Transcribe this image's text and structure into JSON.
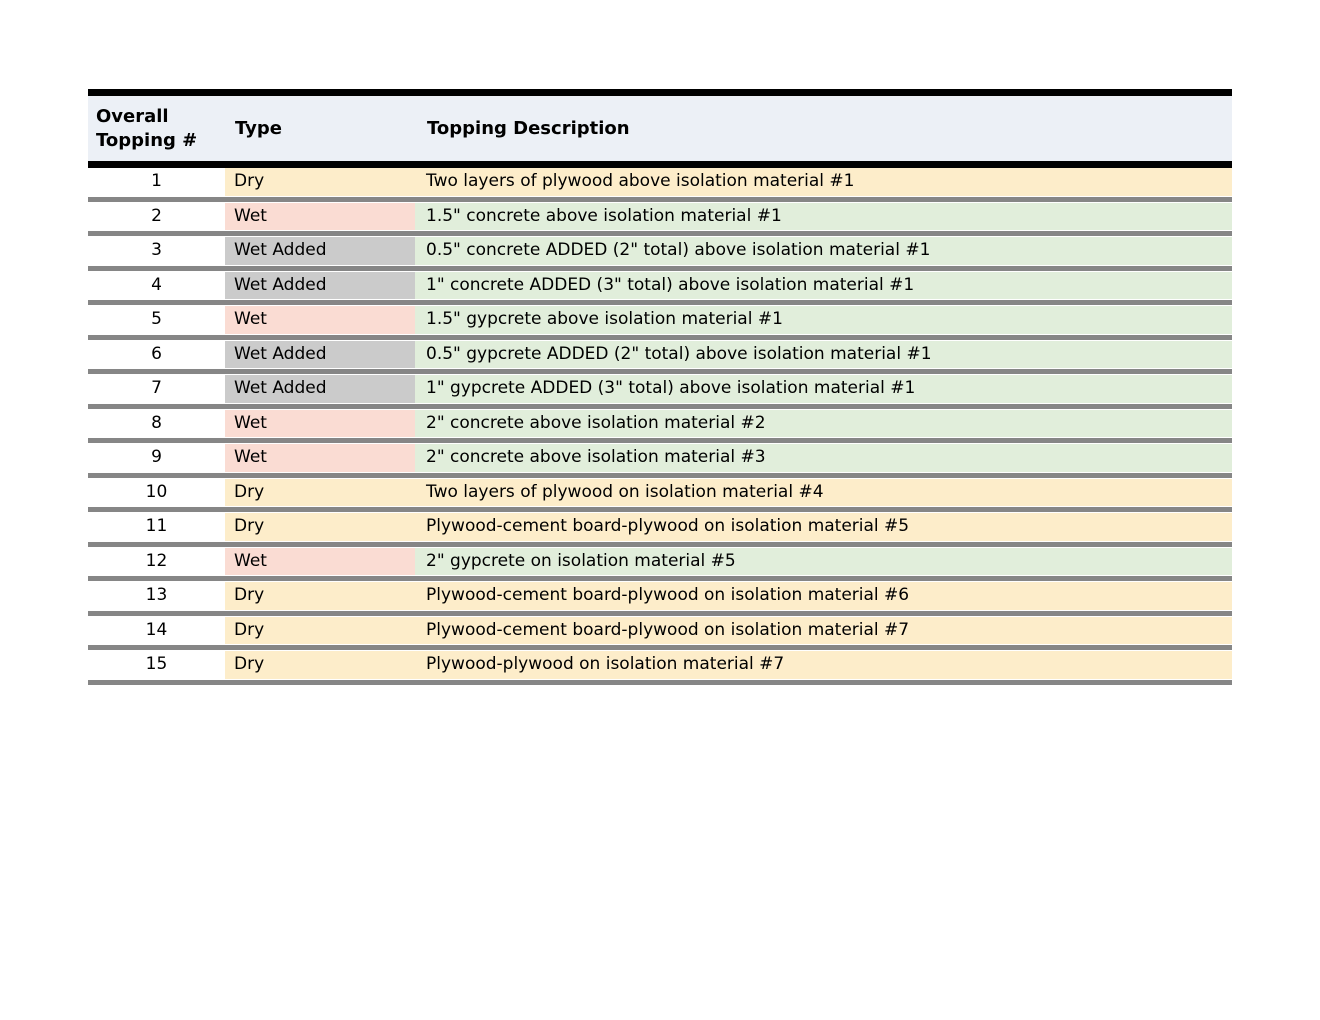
{
  "table": {
    "headers": {
      "topping_number_line1": "Overall",
      "topping_number_line2": "Topping #",
      "type": "Type",
      "description": "Topping Description"
    },
    "palette": {
      "header_bg": "#ecf0f6",
      "header_border": "#000000",
      "separator": "#868686",
      "dry": "#fdedca",
      "wet": "#fadcd3",
      "wet_added": "#cbcbcb",
      "desc_yellow": "#fdedca",
      "desc_green": "#e1eedb"
    },
    "rows": [
      {
        "num": "1",
        "type": "Dry",
        "type_color": "dry",
        "desc": "Two layers of plywood above isolation material #1",
        "desc_color": "desc_yellow"
      },
      {
        "num": "2",
        "type": "Wet",
        "type_color": "wet",
        "desc": "1.5\" concrete above isolation material #1",
        "desc_color": "desc_green"
      },
      {
        "num": "3",
        "type": "Wet Added",
        "type_color": "wet_added",
        "desc": "0.5\" concrete ADDED (2\" total) above isolation material #1",
        "desc_color": "desc_green"
      },
      {
        "num": "4",
        "type": "Wet Added",
        "type_color": "wet_added",
        "desc": "1\" concrete ADDED (3\" total) above isolation material #1",
        "desc_color": "desc_green"
      },
      {
        "num": "5",
        "type": "Wet",
        "type_color": "wet",
        "desc": "1.5\" gypcrete above isolation material #1",
        "desc_color": "desc_green"
      },
      {
        "num": "6",
        "type": "Wet Added",
        "type_color": "wet_added",
        "desc": "0.5\" gypcrete ADDED (2\" total) above isolation material #1",
        "desc_color": "desc_green"
      },
      {
        "num": "7",
        "type": "Wet Added",
        "type_color": "wet_added",
        "desc": "1\" gypcrete ADDED (3\" total) above isolation material #1",
        "desc_color": "desc_green"
      },
      {
        "num": "8",
        "type": "Wet",
        "type_color": "wet",
        "desc": "2\" concrete above isolation material #2",
        "desc_color": "desc_green"
      },
      {
        "num": "9",
        "type": "Wet",
        "type_color": "wet",
        "desc": "2\" concrete above isolation material #3",
        "desc_color": "desc_green"
      },
      {
        "num": "10",
        "type": "Dry",
        "type_color": "dry",
        "desc": "Two layers of plywood on isolation material #4",
        "desc_color": "desc_yellow"
      },
      {
        "num": "11",
        "type": "Dry",
        "type_color": "dry",
        "desc": "Plywood-cement board-plywood on isolation material #5",
        "desc_color": "desc_yellow"
      },
      {
        "num": "12",
        "type": "Wet",
        "type_color": "wet",
        "desc": "2\" gypcrete on isolation material #5",
        "desc_color": "desc_green"
      },
      {
        "num": "13",
        "type": "Dry",
        "type_color": "dry",
        "desc": "Plywood-cement board-plywood on isolation material #6",
        "desc_color": "desc_yellow"
      },
      {
        "num": "14",
        "type": "Dry",
        "type_color": "dry",
        "desc": "Plywood-cement board-plywood on isolation material #7",
        "desc_color": "desc_yellow"
      },
      {
        "num": "15",
        "type": "Dry",
        "type_color": "dry",
        "desc": "Plywood-plywood on isolation material #7",
        "desc_color": "desc_yellow"
      }
    ]
  }
}
